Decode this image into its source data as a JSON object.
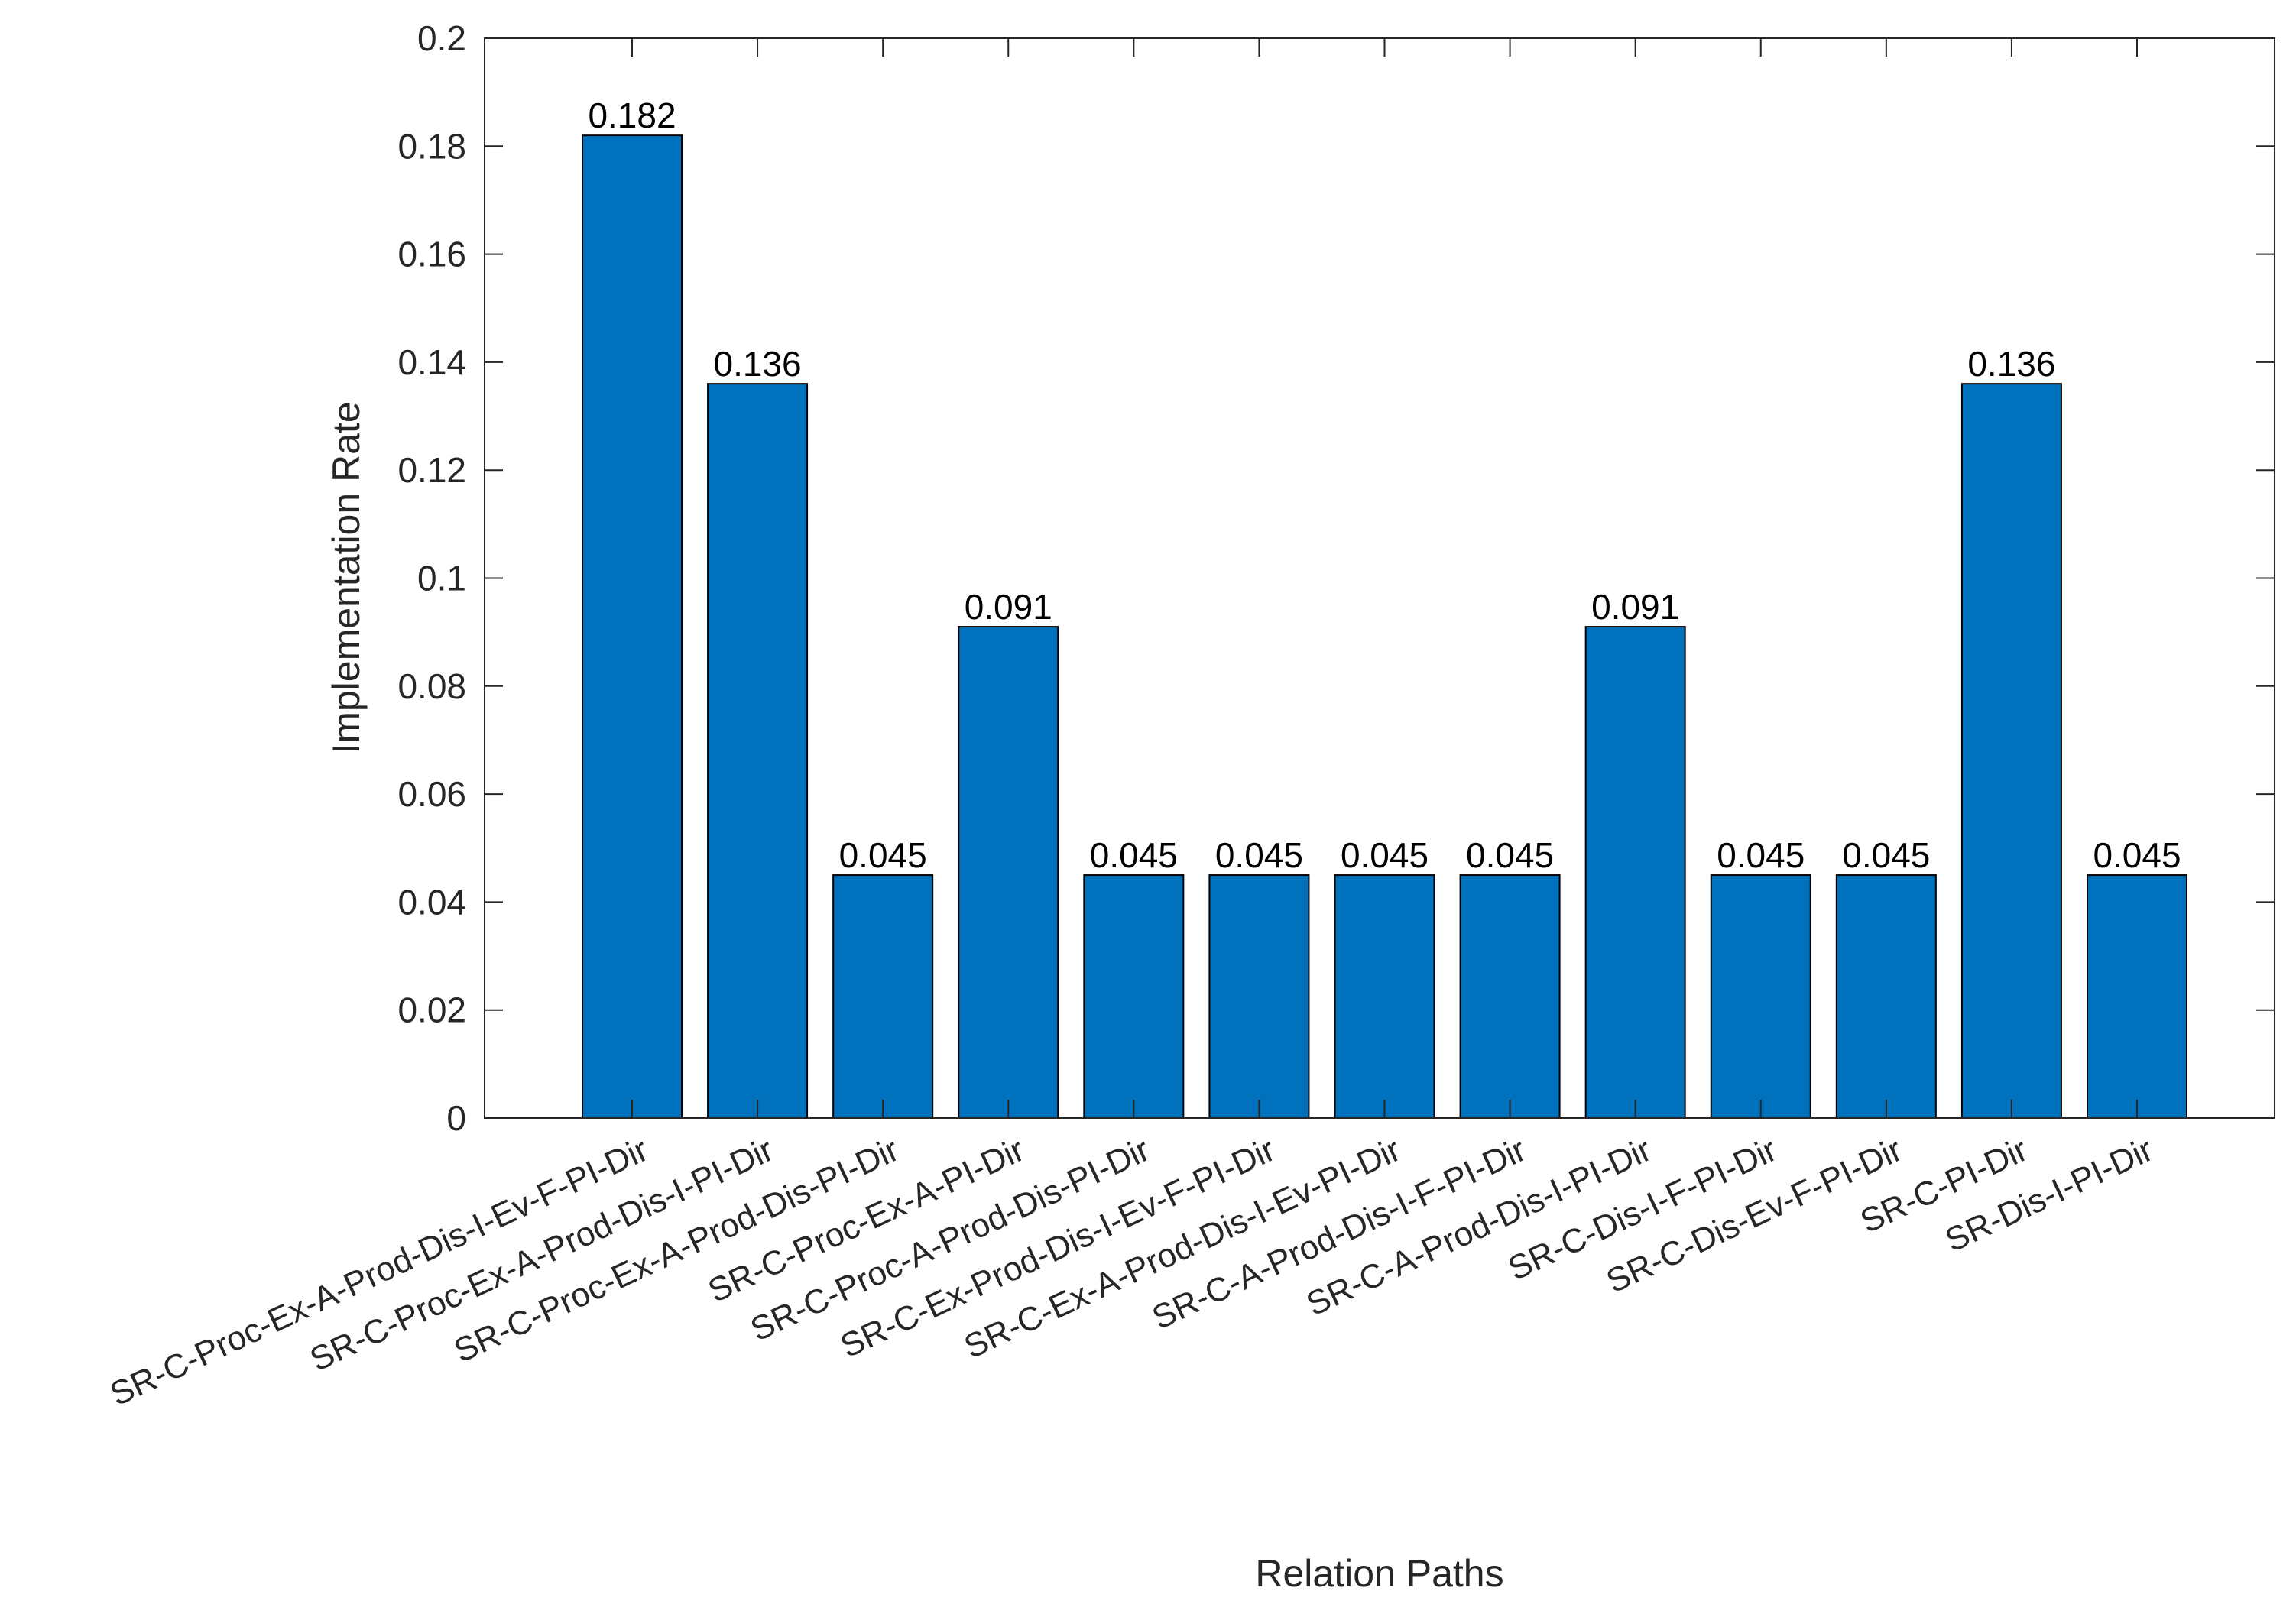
{
  "chart_data": {
    "type": "bar",
    "title": "",
    "xlabel": "Relation Paths",
    "ylabel": "Implementation Rate",
    "ylim": [
      0,
      0.2
    ],
    "yticks": [
      "0",
      "0.02",
      "0.04",
      "0.06",
      "0.08",
      "0.1",
      "0.12",
      "0.14",
      "0.16",
      "0.18",
      "0.2"
    ],
    "grid": false,
    "legend": "none",
    "bar_color": "#0072BD",
    "categories": [
      "SR-C-Proc-Ex-A-Prod-Dis-I-Ev-F-PI-Dir",
      "SR-C-Proc-Ex-A-Prod-Dis-I-PI-Dir",
      "SR-C-Proc-Ex-A-Prod-Dis-PI-Dir",
      "SR-C-Proc-Ex-A-PI-Dir",
      "SR-C-Proc-A-Prod-Dis-PI-Dir",
      "SR-C-Ex-Prod-Dis-I-Ev-F-PI-Dir",
      "SR-C-Ex-A-Prod-Dis-I-Ev-PI-Dir",
      "SR-C-A-Prod-Dis-I-F-PI-Dir",
      "SR-C-A-Prod-Dis-I-PI-Dir",
      "SR-C-Dis-I-F-PI-Dir",
      "SR-C-Dis-Ev-F-PI-Dir",
      "SR-C-PI-Dir",
      "SR-Dis-I-PI-Dir"
    ],
    "values": [
      0.182,
      0.136,
      0.045,
      0.091,
      0.045,
      0.045,
      0.045,
      0.045,
      0.091,
      0.045,
      0.045,
      0.136,
      0.045
    ],
    "data_labels": [
      "0.182",
      "0.136",
      "0.045",
      "0.091",
      "0.045",
      "0.045",
      "0.045",
      "0.045",
      "0.091",
      "0.045",
      "0.045",
      "0.136",
      "0.045"
    ]
  }
}
